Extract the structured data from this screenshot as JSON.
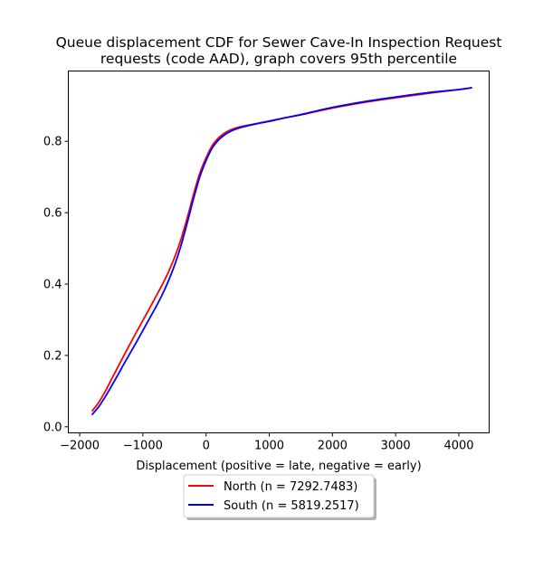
{
  "chart_data": {
    "type": "line",
    "title_lines": [
      "Queue displacement CDF for Sewer Cave-In Inspection Request",
      "requests (code AAD), graph covers 95th percentile"
    ],
    "xlabel": "Displacement (positive = late, negative = early)",
    "ylabel": "",
    "xlim": [
      -2180,
      4480
    ],
    "ylim": [
      -0.017,
      0.997
    ],
    "x_ticks": [
      -2000,
      -1000,
      0,
      1000,
      2000,
      3000,
      4000
    ],
    "x_tick_labels": [
      "−2000",
      "−1000",
      "0",
      "1000",
      "2000",
      "3000",
      "4000"
    ],
    "y_ticks": [
      0.0,
      0.2,
      0.4,
      0.6,
      0.8
    ],
    "y_tick_labels": [
      "0.0",
      "0.2",
      "0.4",
      "0.6",
      "0.8"
    ],
    "grid": false,
    "legend_position": "below",
    "series": [
      {
        "name": "North (n = 7292.7483)",
        "color": "#ff0000",
        "x": [
          -1800,
          -1700,
          -1600,
          -1500,
          -1400,
          -1300,
          -1200,
          -1100,
          -1000,
          -900,
          -800,
          -700,
          -600,
          -500,
          -400,
          -300,
          -200,
          -100,
          0,
          100,
          200,
          300,
          400,
          500,
          600,
          800,
          1000,
          1200,
          1500,
          2000,
          2500,
          3000,
          3500,
          4000,
          4200
        ],
        "y": [
          0.045,
          0.068,
          0.098,
          0.132,
          0.166,
          0.2,
          0.233,
          0.266,
          0.298,
          0.33,
          0.363,
          0.396,
          0.432,
          0.474,
          0.524,
          0.584,
          0.65,
          0.71,
          0.754,
          0.789,
          0.81,
          0.824,
          0.833,
          0.839,
          0.843,
          0.85,
          0.857,
          0.864,
          0.874,
          0.893,
          0.909,
          0.922,
          0.934,
          0.945,
          0.95
        ]
      },
      {
        "name": "South (n = 5819.2517)",
        "color": "#0000ff",
        "x": [
          -1800,
          -1700,
          -1600,
          -1500,
          -1400,
          -1300,
          -1200,
          -1100,
          -1000,
          -900,
          -800,
          -700,
          -600,
          -500,
          -400,
          -300,
          -200,
          -100,
          0,
          100,
          200,
          300,
          400,
          500,
          600,
          800,
          1000,
          1200,
          1500,
          2000,
          2500,
          3000,
          3500,
          4000,
          4200
        ],
        "y": [
          0.035,
          0.056,
          0.083,
          0.113,
          0.144,
          0.176,
          0.207,
          0.238,
          0.27,
          0.302,
          0.334,
          0.368,
          0.407,
          0.452,
          0.506,
          0.57,
          0.638,
          0.7,
          0.746,
          0.782,
          0.804,
          0.819,
          0.829,
          0.836,
          0.841,
          0.849,
          0.856,
          0.864,
          0.875,
          0.895,
          0.911,
          0.924,
          0.936,
          0.945,
          0.95
        ]
      }
    ]
  }
}
